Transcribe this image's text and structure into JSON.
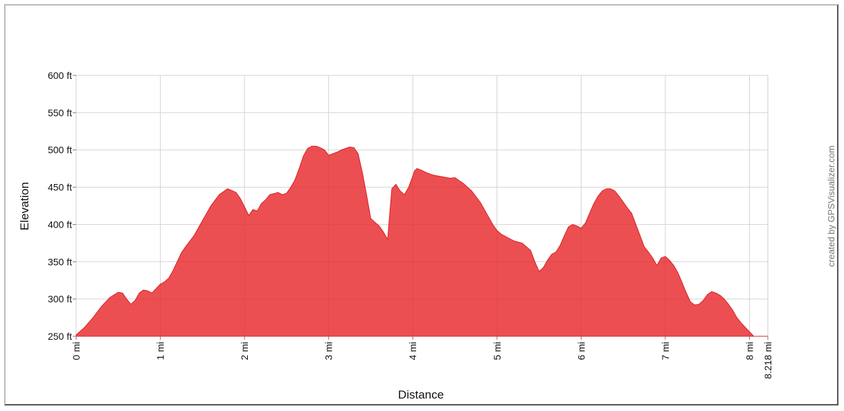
{
  "chart_data": {
    "type": "area",
    "xlabel": "Distance",
    "ylabel": "Elevation",
    "credit": "created by GPSVisualizer.com",
    "xlim": [
      0,
      8.218
    ],
    "ylim": [
      250,
      600
    ],
    "x_ticks": [
      {
        "value": 0,
        "label": "0 mi"
      },
      {
        "value": 1,
        "label": "1 mi"
      },
      {
        "value": 2,
        "label": "2 mi"
      },
      {
        "value": 3,
        "label": "3 mi"
      },
      {
        "value": 4,
        "label": "4 mi"
      },
      {
        "value": 5,
        "label": "5 mi"
      },
      {
        "value": 6,
        "label": "6 mi"
      },
      {
        "value": 7,
        "label": "7 mi"
      },
      {
        "value": 8,
        "label": "8 mi"
      },
      {
        "value": 8.218,
        "label": "8.218 mi"
      }
    ],
    "y_ticks": [
      {
        "value": 250,
        "label": "250 ft"
      },
      {
        "value": 300,
        "label": "300 ft"
      },
      {
        "value": 350,
        "label": "350 ft"
      },
      {
        "value": 400,
        "label": "400 ft"
      },
      {
        "value": 450,
        "label": "450 ft"
      },
      {
        "value": 500,
        "label": "500 ft"
      },
      {
        "value": 550,
        "label": "550 ft"
      },
      {
        "value": 600,
        "label": "600 ft"
      }
    ],
    "grid": true,
    "fill_color": "#e8282b",
    "series": [
      {
        "x": [
          0,
          0.1,
          0.2,
          0.3,
          0.4,
          0.5,
          0.55,
          0.6,
          0.65,
          0.7,
          0.75,
          0.8,
          0.85,
          0.9,
          0.95,
          1.0,
          1.05,
          1.1,
          1.15,
          1.2,
          1.25,
          1.3,
          1.4,
          1.5,
          1.6,
          1.7,
          1.8,
          1.9,
          1.95,
          2.0,
          2.05,
          2.1,
          2.15,
          2.2,
          2.25,
          2.3,
          2.4,
          2.45,
          2.5,
          2.55,
          2.6,
          2.65,
          2.7,
          2.75,
          2.8,
          2.85,
          2.9,
          2.95,
          3.0,
          3.05,
          3.1,
          3.15,
          3.2,
          3.25,
          3.3,
          3.35,
          3.4,
          3.45,
          3.5,
          3.55,
          3.6,
          3.65,
          3.7,
          3.75,
          3.8,
          3.85,
          3.9,
          3.95,
          4.0,
          4.02,
          4.05,
          4.1,
          4.15,
          4.2,
          4.25,
          4.3,
          4.35,
          4.4,
          4.45,
          4.5,
          4.6,
          4.7,
          4.8,
          4.85,
          4.9,
          4.95,
          5.0,
          5.05,
          5.1,
          5.15,
          5.2,
          5.3,
          5.4,
          5.45,
          5.5,
          5.55,
          5.6,
          5.65,
          5.7,
          5.75,
          5.8,
          5.85,
          5.9,
          5.95,
          6.0,
          6.05,
          6.1,
          6.15,
          6.2,
          6.25,
          6.3,
          6.35,
          6.4,
          6.45,
          6.5,
          6.55,
          6.6,
          6.65,
          6.7,
          6.75,
          6.8,
          6.85,
          6.9,
          6.95,
          7.0,
          7.05,
          7.1,
          7.15,
          7.2,
          7.25,
          7.3,
          7.35,
          7.4,
          7.45,
          7.5,
          7.55,
          7.6,
          7.65,
          7.7,
          7.75,
          7.8,
          7.85,
          7.9,
          7.95,
          8.0,
          8.05,
          8.1,
          8.15,
          8.218
        ],
        "y": [
          252,
          262,
          275,
          290,
          302,
          309,
          308,
          300,
          293,
          298,
          308,
          312,
          311,
          308,
          314,
          320,
          323,
          328,
          338,
          350,
          362,
          370,
          385,
          405,
          425,
          440,
          448,
          443,
          435,
          424,
          412,
          420,
          418,
          428,
          433,
          440,
          443,
          440,
          442,
          450,
          460,
          475,
          492,
          502,
          505,
          505,
          503,
          500,
          493,
          495,
          497,
          500,
          502,
          504,
          503,
          495,
          470,
          440,
          408,
          403,
          398,
          390,
          380,
          448,
          454,
          445,
          440,
          450,
          465,
          472,
          475,
          473,
          470,
          468,
          466,
          465,
          464,
          463,
          462,
          463,
          455,
          445,
          430,
          420,
          410,
          400,
          392,
          387,
          384,
          381,
          378,
          375,
          365,
          350,
          337,
          342,
          352,
          360,
          363,
          372,
          385,
          397,
          400,
          398,
          395,
          402,
          415,
          428,
          438,
          445,
          448,
          448,
          445,
          438,
          430,
          422,
          415,
          400,
          385,
          370,
          363,
          355,
          345,
          355,
          357,
          352,
          345,
          335,
          322,
          308,
          296,
          292,
          293,
          298,
          306,
          310,
          308,
          305,
          300,
          293,
          285,
          275,
          268,
          262,
          256,
          250,
          250,
          250,
          250
        ]
      }
    ]
  }
}
